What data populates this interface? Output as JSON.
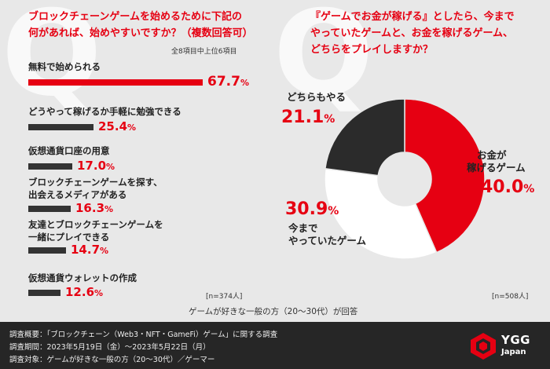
{
  "left": {
    "q_glyph": "Q",
    "title_line1": "ブロックチェーンゲームを始めるために下記の",
    "title_line2": "何があれば、始めやすいですか？（複数回答可）",
    "note": "全8項目中上位6項目",
    "n_label": "[n=374人]"
  },
  "right": {
    "q_glyph": "Q",
    "title_line1": "『ゲームでお金が稼げる』としたら、今まで",
    "title_line2": "やっていたゲームと、お金を稼げるゲーム、",
    "title_line3": "どちらをプレイしますか？",
    "n_label": "[n=508人]"
  },
  "center_note": "ゲームが好きな一般の方（20～30代）が回答",
  "chart_data": [
    {
      "type": "bar",
      "orientation": "horizontal",
      "categories": [
        "無料で始められる",
        "どうやって稼げるか手軽に勉強できる",
        "仮想通貨口座の用意",
        "ブロックチェーンゲームを探す、出会えるメディアがある",
        "友達とブロックチェーンゲームを一緒にプレイできる",
        "仮想通貨ウォレットの作成"
      ],
      "label_lines": [
        [
          "無料で始められる"
        ],
        [
          "どうやって稼げるか手軽に勉強できる"
        ],
        [
          "仮想通貨口座の用意"
        ],
        [
          "ブロックチェーンゲームを探す、",
          "出会えるメディアがある"
        ],
        [
          "友達とブロックチェーンゲームを",
          "一緒にプレイできる"
        ],
        [
          "仮想通貨ウォレットの作成"
        ]
      ],
      "values": [
        67.7,
        25.4,
        17.0,
        16.3,
        14.7,
        12.6
      ],
      "value_labels": [
        "67.7",
        "25.4",
        "17.0",
        "16.3",
        "14.7",
        "12.6"
      ],
      "unit": "%",
      "xlim": [
        0,
        70
      ],
      "colors": [
        "#e60012",
        "#333333",
        "#333333",
        "#333333",
        "#333333",
        "#333333"
      ]
    },
    {
      "type": "pie",
      "donut": true,
      "categories": [
        "お金が稼げるゲーム",
        "今までやっていたゲーム",
        "どちらもやる"
      ],
      "label_lines": [
        [
          "お金が",
          "稼げるゲーム"
        ],
        [
          "今まで",
          "やっていたゲーム"
        ],
        [
          "どちらもやる"
        ]
      ],
      "values": [
        40.0,
        30.9,
        21.1
      ],
      "value_labels": [
        "40.0",
        "30.9",
        "21.1"
      ],
      "unit": "%",
      "colors": [
        "#e60012",
        "#ffffff",
        "#2b2b2b"
      ]
    }
  ],
  "footer": {
    "line1": "調査概要：「ブロックチェーン（Web3・NFT・GameFi）ゲーム」に関する調査",
    "line2": "調査期間：2023年5月19日（金）～2023年5月22日（月）",
    "line3": "調査対象：ゲームが好きな一般の方（20～30代）／ゲーマー",
    "logo_text1": "YGG",
    "logo_text2": "Japan",
    "logo_icon": "ygg-cube-logo"
  }
}
